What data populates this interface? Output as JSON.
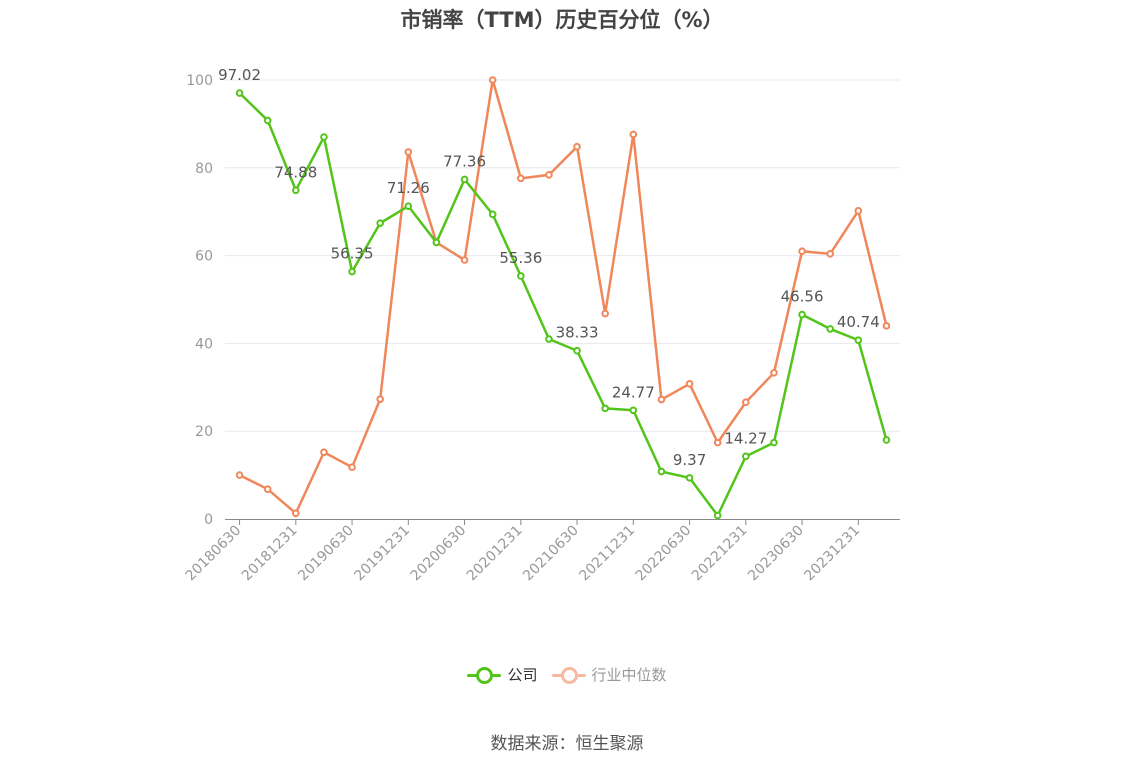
{
  "title": "市销率（TTM）历史百分位（%）",
  "source": "数据来源：恒生聚源",
  "legend": {
    "company": "公司",
    "industry": "行业中位数"
  },
  "colors": {
    "company": "#52c41a",
    "industry": "#f0875a",
    "industry_legend": "#f6b9a0",
    "axis": "#888888",
    "grid": "#e6e8ef",
    "label": "#999999"
  },
  "chart_data": {
    "type": "line",
    "x": [
      "20180630",
      "20180930",
      "20181231",
      "20190331",
      "20190630",
      "20190930",
      "20191231",
      "20200331",
      "20200630",
      "20200930",
      "20201231",
      "20210331",
      "20210630",
      "20210930",
      "20211231",
      "20220331",
      "20220630",
      "20220930",
      "20221231",
      "20230331",
      "20230630",
      "20230930",
      "20231231",
      "20240331"
    ],
    "tick_labels": [
      "20180630",
      "20181231",
      "20190630",
      "20191231",
      "20200630",
      "20201231",
      "20210630",
      "20211231",
      "20220630",
      "20221231",
      "20230630",
      "20231231"
    ],
    "y_ticks": [
      "0",
      "20",
      "40",
      "60",
      "80",
      "100"
    ],
    "ylim": [
      0,
      100
    ],
    "series": [
      {
        "name": "公司",
        "values": [
          97.02,
          90.8,
          74.88,
          87.0,
          56.35,
          67.4,
          71.26,
          63.0,
          77.36,
          69.4,
          55.36,
          41.0,
          38.33,
          25.2,
          24.77,
          10.8,
          9.37,
          0.8,
          14.27,
          17.4,
          46.56,
          43.3,
          40.74,
          18.0
        ]
      },
      {
        "name": "行业中位数",
        "values": [
          10.0,
          6.8,
          1.3,
          15.2,
          11.8,
          27.3,
          83.6,
          63.0,
          59.0,
          100.0,
          77.6,
          78.4,
          84.8,
          46.8,
          87.6,
          27.2,
          30.8,
          17.4,
          26.6,
          33.3,
          61.0,
          60.4,
          70.2,
          44.0
        ]
      }
    ],
    "data_labels": [
      {
        "series": 0,
        "index": 0,
        "text": "97.02"
      },
      {
        "series": 0,
        "index": 2,
        "text": "74.88"
      },
      {
        "series": 0,
        "index": 4,
        "text": "56.35"
      },
      {
        "series": 0,
        "index": 6,
        "text": "71.26"
      },
      {
        "series": 0,
        "index": 8,
        "text": "77.36"
      },
      {
        "series": 0,
        "index": 10,
        "text": "55.36"
      },
      {
        "series": 0,
        "index": 12,
        "text": "38.33"
      },
      {
        "series": 0,
        "index": 14,
        "text": "24.77"
      },
      {
        "series": 0,
        "index": 16,
        "text": "9.37"
      },
      {
        "series": 0,
        "index": 18,
        "text": "14.27"
      },
      {
        "series": 0,
        "index": 20,
        "text": "46.56"
      },
      {
        "series": 0,
        "index": 22,
        "text": "40.74"
      }
    ],
    "grid": true,
    "legend_position": "bottom"
  }
}
